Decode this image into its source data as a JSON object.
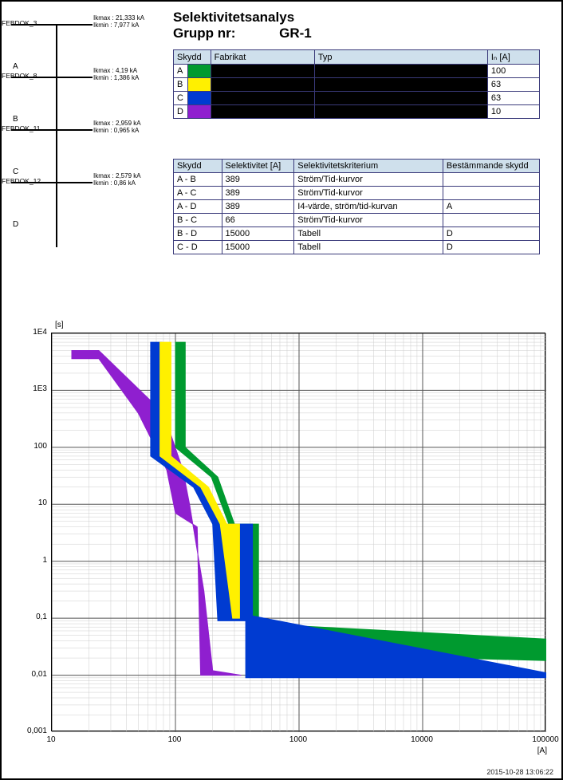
{
  "title": "Selektivitetsanalys",
  "group_label": "Grupp nr:",
  "group_value": "GR-1",
  "schematic": {
    "vertical_x": 68,
    "feeders": [
      {
        "name": "FEBDOK_3",
        "y": 0,
        "ikmax": "Ikmax : 21,333 kA",
        "ikmin": "Ikmin : 7,977 kA",
        "letter": "A",
        "letter_y": 48
      },
      {
        "name": "FEBDOK_8",
        "y": 66,
        "ikmax": "Ikmax : 4,19 kA",
        "ikmin": "Ikmin : 1,386 kA",
        "letter": "B",
        "letter_y": 114
      },
      {
        "name": "FEBDOK_11",
        "y": 132,
        "ikmax": "Ikmax : 2,959 kA",
        "ikmin": "Ikmin : 0,965 kA",
        "letter": "C",
        "letter_y": 180
      },
      {
        "name": "FEBDOK_12",
        "y": 198,
        "ikmax": "Ikmax : 2,579 kA",
        "ikmin": "Ikmin : 0,86 kA",
        "letter": "D",
        "letter_y": 246
      }
    ]
  },
  "prot_headers": {
    "skydd": "Skydd",
    "fabrikat": "Fabrikat",
    "typ": "Typ",
    "in": "Iₙ [A]"
  },
  "prot_rows": [
    {
      "id": "A",
      "color": "#009a2f",
      "in": "100"
    },
    {
      "id": "B",
      "color": "#fff000",
      "in": "63"
    },
    {
      "id": "C",
      "color": "#003bd1",
      "in": "63"
    },
    {
      "id": "D",
      "color": "#8f1fcf",
      "in": "10"
    }
  ],
  "sel_headers": {
    "pair": "Skydd",
    "val": "Selektivitet [A]",
    "krit": "Selektivitetskriterium",
    "best": "Bestämmande skydd"
  },
  "sel_rows": [
    {
      "pair": "A - B",
      "val": "389",
      "krit": "Ström/Tid-kurvor",
      "best": ""
    },
    {
      "pair": "A - C",
      "val": "389",
      "krit": "Ström/Tid-kurvor",
      "best": ""
    },
    {
      "pair": "A - D",
      "val": "389",
      "krit": "I4-värde, ström/tid-kurvan",
      "best": "A"
    },
    {
      "pair": "B - C",
      "val": "66",
      "krit": "Ström/Tid-kurvor",
      "best": ""
    },
    {
      "pair": "B - D",
      "val": "15000",
      "krit": "Tabell",
      "best": "D"
    },
    {
      "pair": "C - D",
      "val": "15000",
      "krit": "Tabell",
      "best": "D"
    }
  ],
  "chart": {
    "type": "loglog-band",
    "y_unit": "[s]",
    "x_unit": "[A]",
    "xlim": [
      10,
      100000
    ],
    "ylim": [
      0.001,
      10000
    ],
    "xticks": [
      10,
      100,
      1000,
      10000,
      100000
    ],
    "xtick_labels": [
      "10",
      "100",
      "1000",
      "10000",
      "100000"
    ],
    "yticks": [
      0.001,
      0.01,
      0.1,
      1,
      10,
      100,
      1000,
      10000
    ],
    "ytick_labels": [
      "0,001",
      "0,01",
      "0,1",
      "1",
      "10",
      "100",
      "1E3",
      "1E4"
    ],
    "plot_background": "#ffffff",
    "grid_major_color": "#555555",
    "grid_minor_color": "#cccccc",
    "series": [
      {
        "name": "D",
        "color": "#8f1fcf",
        "poly": [
          [
            14.5,
            3600
          ],
          [
            24,
            3600
          ],
          [
            50,
            400
          ],
          [
            85,
            40
          ],
          [
            100,
            7
          ],
          [
            150,
            4
          ],
          [
            160,
            0.01
          ],
          [
            340,
            0.01
          ],
          [
            200,
            0.012
          ],
          [
            170,
            0.3
          ],
          [
            130,
            10
          ],
          [
            115,
            40
          ],
          [
            80,
            400
          ],
          [
            24,
            5000
          ],
          [
            14.5,
            5000
          ]
        ]
      },
      {
        "name": "A",
        "color": "#009a2f",
        "poly": [
          [
            100,
            7000
          ],
          [
            120,
            7000
          ],
          [
            120,
            100
          ],
          [
            220,
            30
          ],
          [
            300,
            4.5
          ],
          [
            470,
            4.5
          ],
          [
            470,
            0.08
          ],
          [
            100000,
            0.043
          ],
          [
            100000,
            0.018
          ],
          [
            420,
            0.025
          ],
          [
            420,
            0.1
          ],
          [
            300,
            0.1
          ],
          [
            270,
            4.5
          ],
          [
            195,
            30
          ],
          [
            100,
            100
          ]
        ]
      },
      {
        "name": "C",
        "color": "#003bd1",
        "poly": [
          [
            63,
            7000
          ],
          [
            78,
            7000
          ],
          [
            78,
            70
          ],
          [
            170,
            20
          ],
          [
            240,
            4.5
          ],
          [
            420,
            4.5
          ],
          [
            420,
            0.11
          ],
          [
            100000,
            0.011
          ],
          [
            100000,
            0.009
          ],
          [
            370,
            0.009
          ],
          [
            370,
            0.09
          ],
          [
            220,
            0.09
          ],
          [
            200,
            4.5
          ],
          [
            140,
            20
          ],
          [
            63,
            70
          ]
        ]
      },
      {
        "name": "B",
        "color": "#fff000",
        "poly": [
          [
            75,
            7000
          ],
          [
            92,
            7000
          ],
          [
            92,
            70
          ],
          [
            185,
            20
          ],
          [
            260,
            4.5
          ],
          [
            330,
            4.5
          ],
          [
            330,
            0.1
          ],
          [
            290,
            0.1
          ],
          [
            230,
            4.5
          ],
          [
            160,
            20
          ],
          [
            75,
            70
          ]
        ]
      }
    ]
  },
  "footer_timestamp": "2015-10-28 13:06:22"
}
